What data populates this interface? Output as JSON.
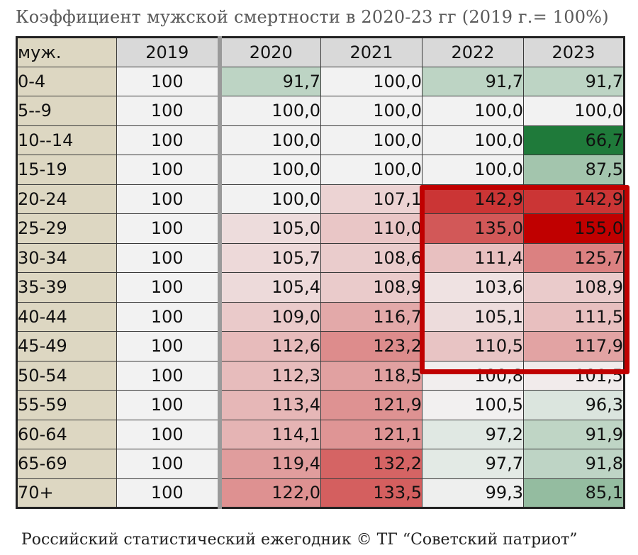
{
  "title": "Коэффициент мужской смертности в 2020-23 гг (2019 г.= 100%)",
  "footer": "Российский статистический ежегодник © ТГ “Советский патриот”",
  "chart_data": {
    "type": "heatmap",
    "corner_label": "муж.",
    "base_column": "2019",
    "base_value": "100",
    "columns": [
      "2020",
      "2021",
      "2022",
      "2023"
    ],
    "rows": [
      {
        "label": "0-4",
        "values": [
          "91,7",
          "100,0",
          "91,7",
          "91,7"
        ]
      },
      {
        "label": "5--9",
        "values": [
          "100,0",
          "100,0",
          "100,0",
          "100,0"
        ]
      },
      {
        "label": "10--14",
        "values": [
          "100,0",
          "100,0",
          "100,0",
          "66,7"
        ]
      },
      {
        "label": "15-19",
        "values": [
          "100,0",
          "100,0",
          "100,0",
          "87,5"
        ]
      },
      {
        "label": "20-24",
        "values": [
          "100,0",
          "107,1",
          "142,9",
          "142,9"
        ]
      },
      {
        "label": "25-29",
        "values": [
          "105,0",
          "110,0",
          "135,0",
          "155,0"
        ]
      },
      {
        "label": "30-34",
        "values": [
          "105,7",
          "108,6",
          "111,4",
          "125,7"
        ]
      },
      {
        "label": "35-39",
        "values": [
          "105,4",
          "108,9",
          "103,6",
          "108,9"
        ]
      },
      {
        "label": "40-44",
        "values": [
          "109,0",
          "116,7",
          "105,1",
          "111,5"
        ]
      },
      {
        "label": "45-49",
        "values": [
          "112,6",
          "123,2",
          "110,5",
          "117,9"
        ]
      },
      {
        "label": "50-54",
        "values": [
          "112,3",
          "118,5",
          "100,8",
          "101,5"
        ]
      },
      {
        "label": "55-59",
        "values": [
          "113,4",
          "121,9",
          "100,5",
          "96,3"
        ]
      },
      {
        "label": "60-64",
        "values": [
          "114,1",
          "121,1",
          "97,2",
          "91,9"
        ]
      },
      {
        "label": "65-69",
        "values": [
          "119,4",
          "132,2",
          "97,7",
          "91,8"
        ]
      },
      {
        "label": "70+",
        "values": [
          "122,0",
          "133,5",
          "99,3",
          "85,1"
        ]
      }
    ],
    "color_scale": {
      "low": "#1f7a3a",
      "neutral": "#f2f2f2",
      "high": "#c00000",
      "min": 66.7,
      "mid": 100,
      "max": 155
    },
    "highlight": {
      "rows": [
        "20-24",
        "45-49"
      ],
      "columns": [
        "2022",
        "2023"
      ],
      "color": "#c00000"
    }
  }
}
